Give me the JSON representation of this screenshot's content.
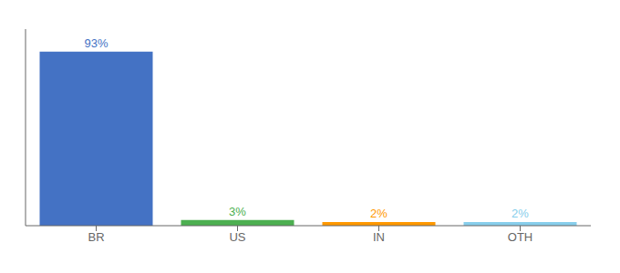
{
  "chart_data": {
    "type": "bar",
    "categories": [
      "BR",
      "US",
      "IN",
      "OTH"
    ],
    "values": [
      93,
      3,
      2,
      2
    ],
    "value_labels": [
      "93%",
      "3%",
      "2%",
      "2%"
    ],
    "colors": [
      "#4472c4",
      "#4caf50",
      "#ff9800",
      "#87ceeb"
    ],
    "ylim": [
      0,
      105
    ],
    "grid": false,
    "data_labels": true,
    "tick_labels": "x"
  }
}
